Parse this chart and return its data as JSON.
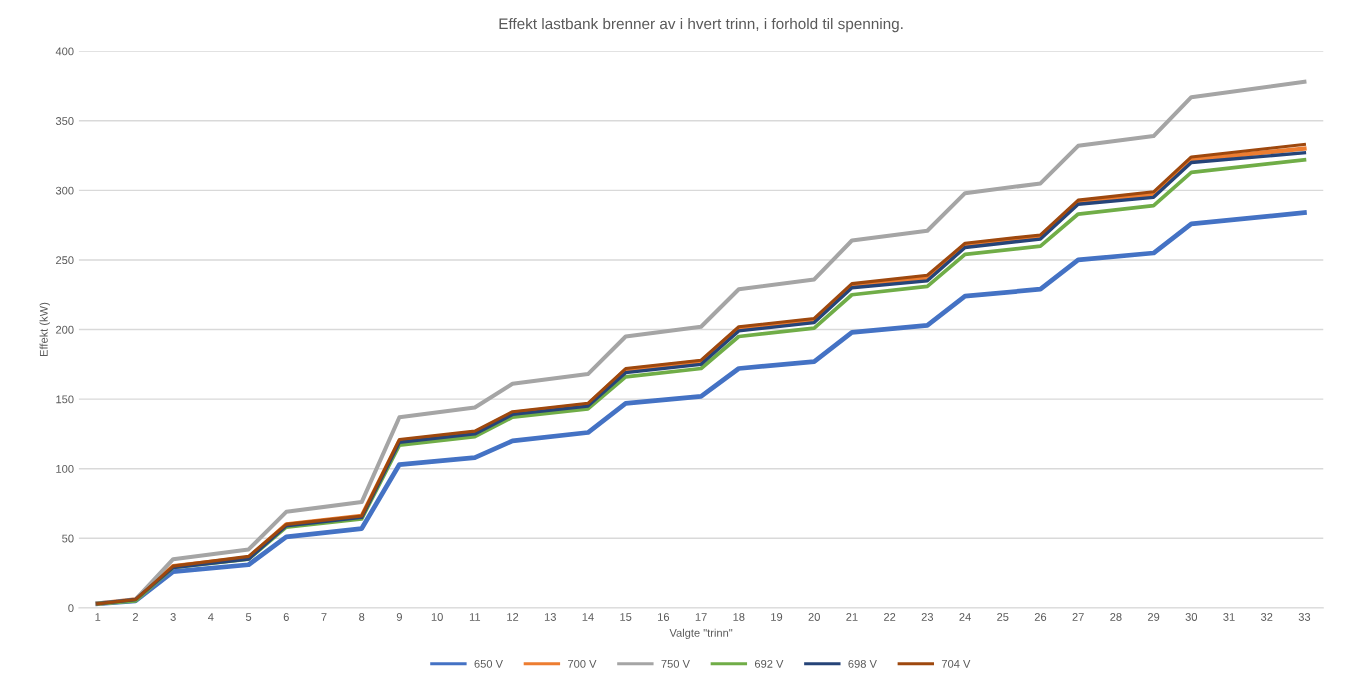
{
  "chart_data": {
    "type": "line",
    "title": "Effekt lastbank brenner av i hvert trinn, i forhold til spenning.",
    "xlabel": "Valgte \"trinn\"",
    "ylabel": "Effekt (kW)",
    "categories": [
      "1",
      "2",
      "3",
      "4",
      "5",
      "6",
      "7",
      "8",
      "9",
      "10",
      "11",
      "12",
      "13",
      "14",
      "15",
      "16",
      "17",
      "18",
      "19",
      "20",
      "21",
      "22",
      "23",
      "24",
      "25",
      "26",
      "27",
      "28",
      "29",
      "30",
      "31",
      "32",
      "33"
    ],
    "series": [
      {
        "name": "650 V",
        "color": "#4472c4",
        "values": [
          3,
          5,
          26,
          null,
          31,
          51,
          null,
          57,
          103,
          null,
          108,
          120,
          null,
          126,
          147,
          null,
          152,
          172,
          null,
          177,
          198,
          null,
          203,
          224,
          null,
          229,
          250,
          null,
          255,
          276,
          null,
          null,
          284
        ]
      },
      {
        "name": "700 V",
        "color": "#ed7d31",
        "values": [
          3,
          6,
          30,
          null,
          36,
          60,
          null,
          66,
          120,
          null,
          126,
          140,
          null,
          146,
          171,
          null,
          177,
          201,
          null,
          207,
          231,
          null,
          237,
          261,
          null,
          267,
          291,
          null,
          297,
          322,
          null,
          null,
          330
        ]
      },
      {
        "name": "750 V",
        "color": "#a5a5a5",
        "values": [
          3,
          6,
          35,
          null,
          42,
          69,
          null,
          76,
          137,
          null,
          144,
          161,
          null,
          168,
          195,
          null,
          202,
          229,
          null,
          236,
          264,
          null,
          271,
          298,
          null,
          305,
          332,
          null,
          339,
          367,
          null,
          null,
          378
        ]
      },
      {
        "name": "692 V",
        "color": "#70ad47",
        "values": [
          3,
          5,
          29,
          null,
          35,
          58,
          null,
          64,
          117,
          null,
          123,
          137,
          null,
          143,
          166,
          null,
          172,
          195,
          null,
          201,
          225,
          null,
          231,
          254,
          null,
          260,
          283,
          null,
          289,
          313,
          null,
          null,
          322
        ]
      },
      {
        "name": "698 V",
        "color": "#264478",
        "values": [
          3,
          6,
          29,
          null,
          35,
          59,
          null,
          65,
          119,
          null,
          125,
          139,
          null,
          145,
          169,
          null,
          175,
          199,
          null,
          205,
          230,
          null,
          235,
          259,
          null,
          265,
          290,
          null,
          295,
          320,
          null,
          null,
          327
        ]
      },
      {
        "name": "704 V",
        "color": "#9e480e",
        "values": [
          3,
          6,
          30,
          null,
          37,
          60,
          null,
          66,
          121,
          null,
          127,
          141,
          null,
          147,
          172,
          null,
          178,
          202,
          null,
          208,
          233,
          null,
          239,
          262,
          null,
          268,
          293,
          null,
          299,
          324,
          null,
          null,
          333
        ]
      }
    ],
    "ylim": [
      0,
      400
    ],
    "yticks": [
      0,
      50,
      100,
      150,
      200,
      250,
      300,
      350,
      400
    ],
    "grid": "y",
    "legend": "bottom",
    "marker": "none",
    "line_style": "solid"
  }
}
